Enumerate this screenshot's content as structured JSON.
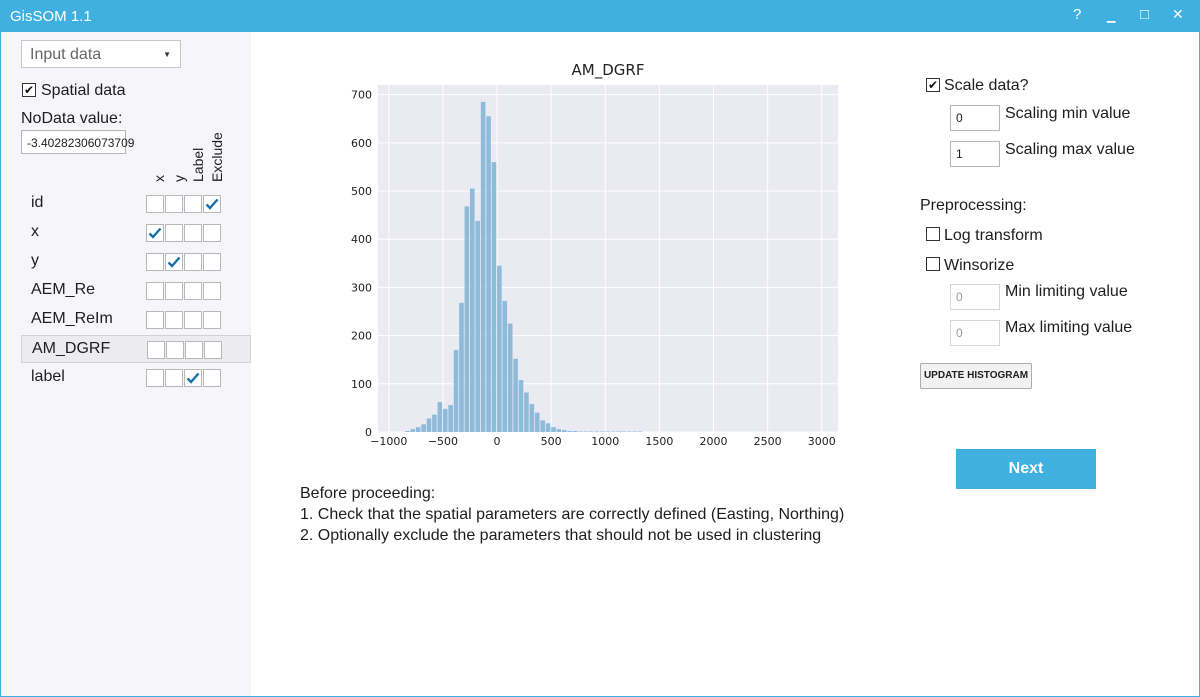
{
  "window": {
    "title": "GisSOM 1.1",
    "help_glyph": "?",
    "minimize_glyph": "▁",
    "maximize_glyph": "□",
    "close_glyph": "✕"
  },
  "left": {
    "dropdown": {
      "selected": "Input data",
      "arrow": "▼"
    },
    "spatial": {
      "label": "Spatial data",
      "checked": true
    },
    "nodata": {
      "label": "NoData value:",
      "value": "-3.40282306073709"
    },
    "columns": [
      "x",
      "y",
      "Label",
      "Exclude"
    ],
    "rows": [
      {
        "name": "id",
        "x": false,
        "y": false,
        "label": false,
        "exclude": true
      },
      {
        "name": "x",
        "x": true,
        "y": false,
        "label": false,
        "exclude": false
      },
      {
        "name": "y",
        "x": false,
        "y": true,
        "label": false,
        "exclude": false
      },
      {
        "name": "AEM_Re",
        "x": false,
        "y": false,
        "label": false,
        "exclude": false
      },
      {
        "name": "AEM_ReIm",
        "x": false,
        "y": false,
        "label": false,
        "exclude": false
      },
      {
        "name": "AM_DGRF",
        "x": false,
        "y": false,
        "label": false,
        "exclude": false,
        "selected": true
      },
      {
        "name": "label",
        "x": false,
        "y": false,
        "label": true,
        "exclude": false
      }
    ]
  },
  "chart_data": {
    "type": "bar",
    "title": "AM_DGRF",
    "xlim": [
      -1100,
      3150
    ],
    "ylim": [
      0,
      720
    ],
    "xticks": [
      -1000,
      -500,
      0,
      500,
      1000,
      1500,
      2000,
      2500,
      3000
    ],
    "yticks": [
      0,
      100,
      200,
      300,
      400,
      500,
      600,
      700
    ],
    "bin_width": 50,
    "bin_starts": [
      -850,
      -800,
      -750,
      -700,
      -650,
      -600,
      -550,
      -500,
      -450,
      -400,
      -350,
      -300,
      -250,
      -200,
      -150,
      -100,
      -50,
      0,
      50,
      100,
      150,
      200,
      250,
      300,
      350,
      400,
      450,
      500,
      550,
      600,
      650,
      700,
      750,
      800,
      850,
      900,
      950,
      1000,
      1050,
      1100,
      1150,
      1200,
      1250,
      1300
    ],
    "values": [
      2,
      6,
      10,
      16,
      28,
      36,
      62,
      48,
      56,
      170,
      268,
      468,
      505,
      438,
      685,
      655,
      560,
      345,
      272,
      225,
      152,
      108,
      82,
      58,
      40,
      24,
      18,
      10,
      6,
      4,
      2,
      2,
      1,
      1,
      1,
      1,
      1,
      1,
      1,
      1,
      1,
      1,
      1,
      1
    ],
    "grid": true,
    "bar_color": "#8fbbdb",
    "background": "#eaeaf2"
  },
  "right": {
    "scale": {
      "label": "Scale data?",
      "checked": true
    },
    "scale_min": {
      "value": "0",
      "label": "Scaling min value"
    },
    "scale_max": {
      "value": "1",
      "label": "Scaling max value"
    },
    "preprocessing_label": "Preprocessing:",
    "log": {
      "label": "Log transform",
      "checked": false
    },
    "winsorize": {
      "label": "Winsorize",
      "checked": false
    },
    "min_limit": {
      "value": "0",
      "label": "Min limiting value"
    },
    "max_limit": {
      "value": "0",
      "label": "Max limiting value"
    },
    "update_button": "UPDATE HISTOGRAM",
    "next_button": "Next"
  },
  "instructions": {
    "heading": "Before proceeding:",
    "line1": "1. Check that the spatial parameters are correctly defined (Easting, Northing)",
    "line2": "2. Optionally exclude the parameters that should not be used in clustering"
  },
  "colors": {
    "accent": "#3fb0e0",
    "check": "#1a6fa8"
  }
}
